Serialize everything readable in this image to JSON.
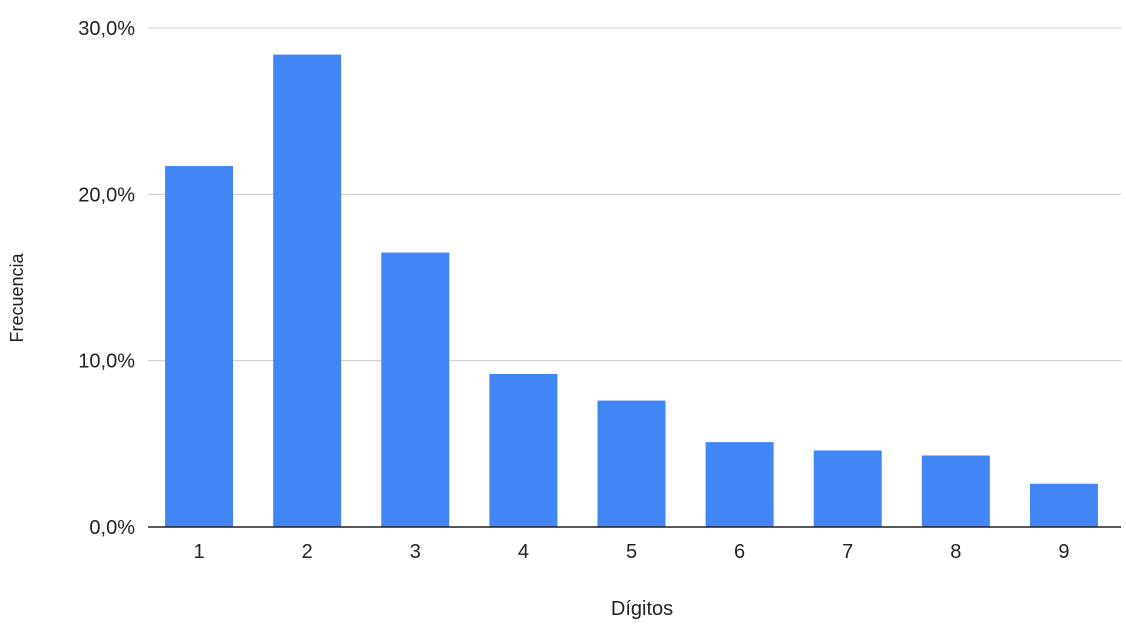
{
  "chart_data": {
    "type": "bar",
    "title": "",
    "xlabel": "Dígitos",
    "ylabel": "Frecuencia",
    "categories": [
      "1",
      "2",
      "3",
      "4",
      "5",
      "6",
      "7",
      "8",
      "9"
    ],
    "values": [
      21.7,
      28.4,
      16.5,
      9.2,
      7.6,
      5.1,
      4.6,
      4.3,
      2.6
    ],
    "ylim": [
      0,
      30
    ],
    "yticks": [
      0,
      10,
      20,
      30
    ],
    "ytick_labels": [
      "0,0%",
      "10,0%",
      "20,0%",
      "30,0%"
    ],
    "grid": true,
    "legend": "none",
    "bar_color": "#4285f4",
    "grid_color": "#cccccc",
    "axis_color": "#222222"
  }
}
